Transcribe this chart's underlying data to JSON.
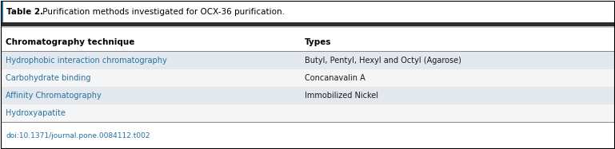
{
  "title_bold": "Table 2.",
  "title_rest": " Purification methods investigated for OCX-36 purification.",
  "col_headers": [
    "Chromatography technique",
    "Types"
  ],
  "rows": [
    [
      "Hydrophobic interaction chromatography",
      "Butyl, Pentyl, Hexyl and Octyl (Agarose)"
    ],
    [
      "Carbohydrate binding",
      "Concanavalin A"
    ],
    [
      "Affinity Chromatography",
      "Immobilized Nickel"
    ],
    [
      "Hydroxyapatite",
      ""
    ]
  ],
  "row_colors": [
    "#e2e8ed",
    "#f5f5f5",
    "#e2e8ed",
    "#f5f5f5"
  ],
  "header_bg": "#ffffff",
  "col_split": 0.495,
  "doi": "doi:10.1371/journal.pone.0084112.t002",
  "title_color": "#000000",
  "header_text_color": "#000000",
  "row_text_color": "#2471a3",
  "types_text_color": "#1a1a1a",
  "doi_text_color": "#2471a3",
  "outer_border_color": "#000000",
  "thick_line_color": "#2c2c2c",
  "thin_line_color": "#a0a0a0",
  "left_title_bar_color": "#2471a3",
  "fig_width": 7.69,
  "fig_height": 1.87,
  "dpi": 100
}
